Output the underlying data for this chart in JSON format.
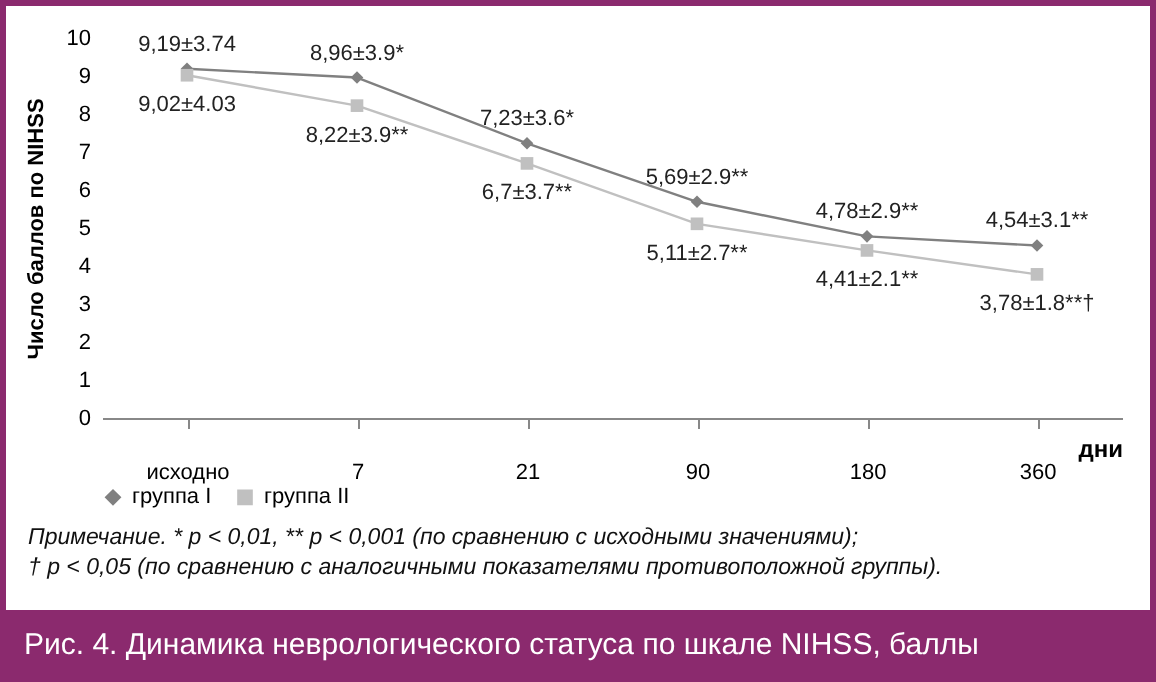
{
  "chart_data": {
    "type": "line",
    "title": "Рис. 4. Динамика неврологического статуса по шкале NIHSS, баллы",
    "xlabel": "дни",
    "ylabel": "Число баллов по NIHSS",
    "annotations": [
      "Примечание. * p < 0,01, ** p < 0,001 (по сравнению с исходными значениями);",
      "† p < 0,05 (по сравнению с аналогичными показателями противоположной группы)."
    ],
    "categories": [
      "исходно",
      "7",
      "21",
      "90",
      "180",
      "360"
    ],
    "series": [
      {
        "name": "группа I",
        "color": "#808080",
        "marker": "diamond",
        "values": [
          9.19,
          8.96,
          7.23,
          5.69,
          4.78,
          4.54
        ],
        "value_labels": [
          "9,19±3.74",
          "8,96±3.9*",
          "7,23±3.6*",
          "5,69±2.9**",
          "4,78±2.9**",
          "4,54±3.1**"
        ]
      },
      {
        "name": "группа II",
        "color": "#c0c0c0",
        "marker": "square",
        "values": [
          9.02,
          8.22,
          6.7,
          5.11,
          4.41,
          3.78
        ],
        "value_labels": [
          "9,02±4.03",
          "8,22±3.9**",
          "6,7±3.7**",
          "5,11±2.7**",
          "4,41±2.1**",
          "3,78±1.8**†"
        ]
      }
    ],
    "ylim": [
      0,
      10
    ],
    "yticks": [
      0,
      1,
      2,
      3,
      4,
      5,
      6,
      7,
      8,
      9,
      10
    ],
    "grid": false,
    "legend": "bottom",
    "line_style": "solid"
  }
}
